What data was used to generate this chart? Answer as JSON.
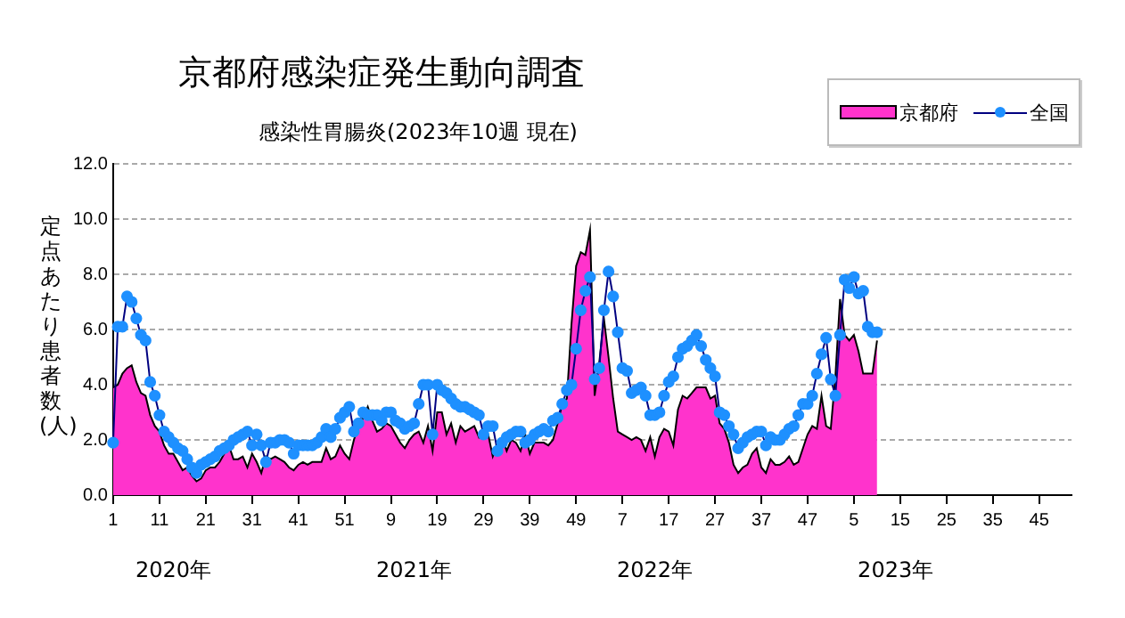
{
  "chart_data": {
    "type": "area",
    "title": "京都府感染症発生動向調査",
    "subtitle": "感染性胃腸炎(2023年10週 現在)",
    "ylabel": "定点あたり患者数(人)",
    "annotations": [
      "2020年",
      "2021年",
      "2022年",
      "2023年"
    ],
    "categories": [
      "1",
      null,
      null,
      null,
      null,
      null,
      null,
      null,
      null,
      null,
      "11",
      null,
      null,
      null,
      null,
      null,
      null,
      null,
      null,
      null,
      "21",
      null,
      null,
      null,
      null,
      null,
      null,
      null,
      null,
      null,
      "31",
      null,
      null,
      null,
      null,
      null,
      null,
      null,
      null,
      null,
      "41",
      null,
      null,
      null,
      null,
      null,
      null,
      null,
      null,
      null,
      "51",
      null,
      null,
      null,
      null,
      null,
      null,
      null,
      null,
      null,
      "9",
      null,
      null,
      null,
      null,
      null,
      null,
      null,
      null,
      null,
      "19",
      null,
      null,
      null,
      null,
      null,
      null,
      null,
      null,
      null,
      "29",
      null,
      null,
      null,
      null,
      null,
      null,
      null,
      null,
      null,
      "39",
      null,
      null,
      null,
      null,
      null,
      null,
      null,
      null,
      null,
      "49",
      null,
      null,
      null,
      null,
      null,
      null,
      null,
      null,
      null,
      "7",
      null,
      null,
      null,
      null,
      null,
      null,
      null,
      null,
      null,
      "17",
      null,
      null,
      null,
      null,
      null,
      null,
      null,
      null,
      null,
      "27",
      null,
      null,
      null,
      null,
      null,
      null,
      null,
      null,
      null,
      "37",
      null,
      null,
      null,
      null,
      null,
      null,
      null,
      null,
      null,
      "47",
      null,
      null,
      null,
      null,
      null,
      null,
      null,
      null,
      null,
      "5",
      null,
      null,
      null,
      null,
      null,
      null,
      null,
      null,
      null,
      "15",
      null,
      null,
      null,
      null,
      null,
      null,
      null,
      null,
      null,
      "25",
      null,
      null,
      null,
      null,
      null,
      null,
      null,
      null,
      null,
      "35",
      null,
      null,
      null,
      null,
      null,
      null,
      null,
      null,
      null,
      "45",
      null,
      null,
      null,
      null,
      null,
      null,
      null
    ],
    "series": [
      {
        "name": "京都府",
        "type": "area",
        "color": "#ff33cc",
        "values": [
          3.9,
          4.0,
          4.4,
          4.6,
          4.7,
          4.1,
          3.7,
          3.6,
          2.9,
          2.5,
          2.3,
          1.8,
          1.5,
          1.5,
          1.2,
          0.9,
          1.0,
          0.7,
          0.5,
          0.6,
          0.9,
          1.0,
          1.0,
          1.2,
          1.5,
          1.8,
          1.3,
          1.3,
          1.4,
          1.0,
          1.5,
          1.2,
          0.8,
          1.4,
          1.3,
          1.4,
          1.3,
          1.2,
          1.0,
          0.9,
          1.1,
          1.2,
          1.1,
          1.2,
          1.2,
          1.2,
          1.7,
          1.3,
          1.4,
          1.8,
          1.5,
          1.3,
          2.0,
          2.5,
          2.8,
          3.2,
          2.7,
          2.3,
          2.4,
          2.6,
          2.5,
          2.2,
          1.9,
          1.7,
          2.0,
          2.2,
          2.3,
          1.9,
          2.5,
          1.6,
          3.0,
          3.0,
          2.2,
          2.6,
          1.9,
          2.5,
          2.3,
          2.4,
          2.5,
          2.1,
          2.4,
          2.2,
          1.4,
          1.8,
          2.1,
          1.6,
          2.0,
          1.9,
          1.6,
          2.2,
          1.5,
          1.9,
          1.9,
          1.9,
          1.8,
          2.0,
          2.6,
          3.3,
          3.5,
          6.2,
          8.3,
          8.8,
          8.7,
          9.6,
          3.6,
          4.8,
          6.4,
          5.0,
          3.5,
          2.3,
          2.2,
          2.1,
          2.0,
          2.1,
          2.0,
          1.6,
          2.1,
          1.4,
          2.1,
          2.4,
          2.3,
          1.8,
          3.1,
          3.6,
          3.5,
          3.7,
          3.9,
          3.9,
          3.9,
          3.5,
          3.6,
          2.6,
          2.4,
          1.9,
          1.1,
          0.8,
          1.0,
          1.1,
          1.5,
          1.7,
          1.0,
          0.8,
          1.3,
          1.1,
          1.1,
          1.2,
          1.4,
          1.1,
          1.2,
          1.7,
          2.2,
          2.5,
          2.4,
          3.6,
          2.5,
          2.4,
          4.3,
          7.1,
          5.8,
          5.6,
          5.8,
          5.2,
          4.4,
          4.4,
          4.4,
          5.6,
          null,
          null,
          null,
          null,
          null,
          null,
          null,
          null,
          null,
          null,
          null,
          null,
          null,
          null,
          null,
          null,
          null,
          null,
          null,
          null,
          null,
          null,
          null,
          null,
          null,
          null,
          null,
          null,
          null,
          null,
          null,
          null,
          null,
          null,
          null,
          null,
          null,
          null,
          null,
          null,
          null,
          null
        ]
      },
      {
        "name": "全国",
        "type": "line",
        "color": "#1e90ff",
        "marker": "circle",
        "values": [
          1.9,
          6.1,
          6.1,
          7.2,
          7.0,
          6.4,
          5.8,
          5.6,
          4.1,
          3.6,
          2.9,
          2.3,
          2.1,
          1.9,
          1.7,
          1.6,
          1.3,
          1.0,
          0.8,
          1.1,
          1.2,
          1.3,
          1.4,
          1.6,
          1.7,
          1.8,
          2.0,
          2.1,
          2.2,
          2.3,
          1.8,
          2.2,
          1.8,
          1.2,
          1.9,
          1.9,
          2.0,
          2.0,
          1.9,
          1.5,
          1.8,
          1.8,
          1.8,
          1.8,
          1.9,
          2.1,
          2.4,
          2.1,
          2.4,
          2.8,
          3.0,
          3.2,
          2.3,
          2.6,
          3.0,
          2.9,
          2.9,
          2.9,
          2.7,
          3.0,
          3.0,
          2.7,
          2.6,
          2.4,
          2.5,
          2.6,
          3.3,
          4.0,
          4.0,
          2.2,
          4.0,
          3.8,
          3.7,
          3.5,
          3.3,
          3.2,
          3.2,
          3.1,
          3.0,
          2.9,
          2.2,
          2.5,
          2.5,
          1.6,
          1.9,
          2.1,
          2.2,
          2.3,
          2.3,
          1.9,
          2.0,
          2.2,
          2.3,
          2.4,
          2.3,
          2.7,
          2.8,
          3.3,
          3.8,
          4.0,
          5.3,
          6.7,
          7.4,
          7.9,
          4.2,
          4.6,
          6.7,
          8.1,
          7.2,
          5.9,
          4.6,
          4.5,
          3.7,
          3.8,
          3.9,
          3.6,
          2.9,
          2.9,
          3.0,
          3.6,
          4.1,
          4.3,
          5.0,
          5.3,
          5.4,
          5.6,
          5.8,
          5.4,
          4.9,
          4.6,
          4.3,
          3.0,
          2.9,
          2.5,
          2.2,
          1.7,
          1.9,
          2.1,
          2.2,
          2.3,
          2.3,
          1.8,
          2.1,
          2.0,
          2.0,
          2.2,
          2.4,
          2.5,
          2.9,
          3.3,
          3.3,
          3.6,
          4.4,
          5.1,
          5.7,
          4.2,
          3.6,
          5.8,
          7.8,
          7.5,
          7.9,
          7.3,
          7.4,
          6.1,
          5.9,
          5.9,
          null,
          null,
          null,
          null,
          null,
          null,
          null,
          null,
          null,
          null,
          null,
          null,
          null,
          null,
          null,
          null,
          null,
          null,
          null,
          null,
          null,
          null,
          null,
          null,
          null,
          null,
          null,
          null,
          null,
          null,
          null,
          null,
          null,
          null,
          null,
          null,
          null,
          null,
          null,
          null,
          null,
          null
        ]
      }
    ],
    "ylim": [
      0,
      12
    ],
    "yticks": [
      {
        "value": 0,
        "label": "0.0"
      },
      {
        "value": 2,
        "label": "2.0"
      },
      {
        "value": 4,
        "label": "4.0"
      },
      {
        "value": 6,
        "label": "6.0"
      },
      {
        "value": 8,
        "label": "8.0"
      },
      {
        "value": 10,
        "label": "10.0"
      },
      {
        "value": 12,
        "label": "12.0"
      }
    ],
    "grid": "y",
    "legend": "top right"
  }
}
